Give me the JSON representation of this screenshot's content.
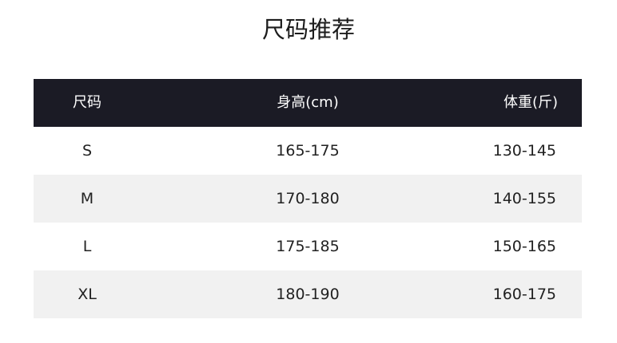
{
  "title": "尺码推荐",
  "table": {
    "headers": [
      "尺码",
      "身高(cm)",
      "体重(斤)"
    ],
    "rows": [
      [
        "S",
        "165-175",
        "130-145"
      ],
      [
        "M",
        "170-180",
        "140-155"
      ],
      [
        "L",
        "175-185",
        "150-165"
      ],
      [
        "XL",
        "180-190",
        "160-175"
      ]
    ]
  },
  "colors": {
    "header_bg": "#1b1b25",
    "alt_row_bg": "#f1f1f1"
  }
}
